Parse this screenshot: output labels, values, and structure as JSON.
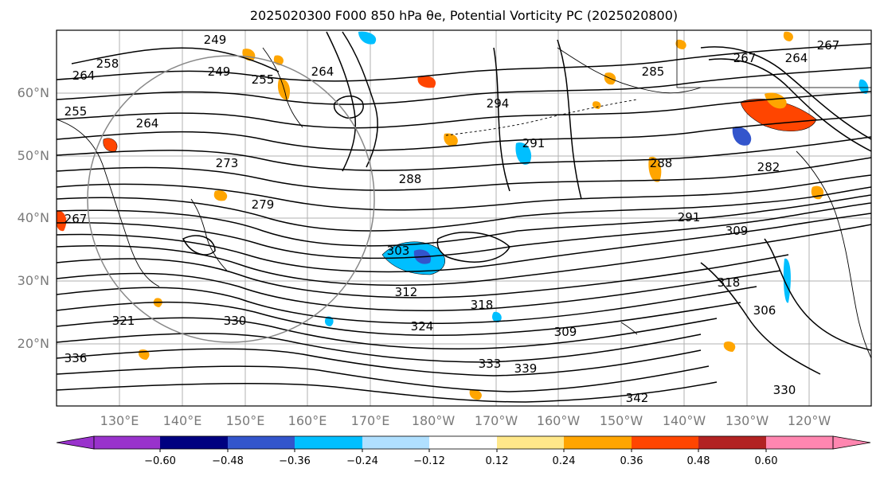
{
  "figure": {
    "title": "2025020300 F000 850 hPa θe, Potential Vorticity PC (2025020800)"
  },
  "map": {
    "lat_labels": [
      "60°N",
      "50°N",
      "40°N",
      "30°N",
      "20°N"
    ],
    "lon_labels": [
      "130°E",
      "140°E",
      "150°E",
      "160°E",
      "170°E",
      "180°W",
      "170°W",
      "160°W",
      "150°W",
      "140°W",
      "130°W",
      "120°W"
    ],
    "contour_labels": [
      "249",
      "258",
      "264",
      "249",
      "255",
      "264",
      "285",
      "267",
      "264",
      "267",
      "255",
      "264",
      "294",
      "291",
      "288",
      "282",
      "273",
      "279",
      "288",
      "267",
      "291",
      "309",
      "303",
      "318",
      "312",
      "318",
      "309",
      "306",
      "321",
      "330",
      "324",
      "333",
      "339",
      "342",
      "336",
      "330"
    ],
    "colors": {
      "contour": "#000000",
      "coast": "#000000",
      "grid": "#b0b0b0"
    }
  },
  "colorbar": {
    "ticks": [
      "−0.60",
      "−0.48",
      "−0.36",
      "−0.24",
      "−0.12",
      "0.12",
      "0.24",
      "0.36",
      "0.48",
      "0.60"
    ],
    "colors": [
      "#9932cc",
      "#000080",
      "#3355cc",
      "#00bfff",
      "#b0e0ff",
      "#ffffff",
      "#ffe88a",
      "#ffa500",
      "#ff4500",
      "#b22222",
      "#ff86b0"
    ]
  },
  "chart_data": {
    "type": "contour",
    "title": "2025020300 F000 850 hPa θe, Potential Vorticity PC (2025020800)",
    "xlabel": "",
    "ylabel": "",
    "lat_range": [
      "10°N",
      "70°N"
    ],
    "lon_range": [
      "120°E",
      "115°W"
    ],
    "contour_field": "850 hPa θe",
    "contour_labels": [
      249,
      255,
      258,
      264,
      267,
      273,
      279,
      282,
      285,
      288,
      291,
      294,
      303,
      306,
      309,
      312,
      318,
      321,
      324,
      330,
      333,
      336,
      339,
      342
    ],
    "filled_field": "Potential Vorticity PC",
    "color_levels": [
      -0.6,
      -0.48,
      -0.36,
      -0.24,
      -0.12,
      0.12,
      0.24,
      0.36,
      0.48,
      0.6
    ],
    "grid": true
  }
}
